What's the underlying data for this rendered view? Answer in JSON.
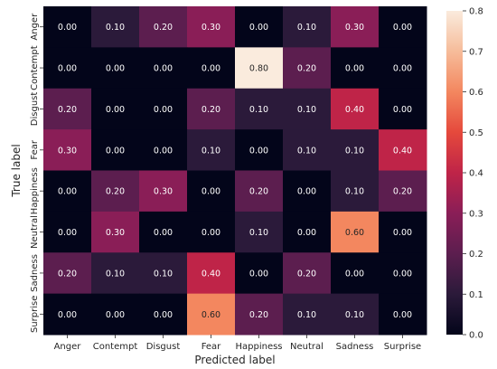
{
  "chart_data": {
    "type": "heatmap",
    "xlabel": "Predicted label",
    "ylabel": "True label",
    "x_categories": [
      "Anger",
      "Contempt",
      "Disgust",
      "Fear",
      "Happiness",
      "Neutral",
      "Sadness",
      "Surprise"
    ],
    "y_categories": [
      "Anger",
      "Contempt",
      "Disgust",
      "Fear",
      "Happiness",
      "Neutral",
      "Sadness",
      "Surprise"
    ],
    "values": [
      [
        0.0,
        0.1,
        0.2,
        0.3,
        0.0,
        0.1,
        0.3,
        0.0
      ],
      [
        0.0,
        0.0,
        0.0,
        0.0,
        0.8,
        0.2,
        0.0,
        0.0
      ],
      [
        0.2,
        0.0,
        0.0,
        0.2,
        0.1,
        0.1,
        0.4,
        0.0
      ],
      [
        0.3,
        0.0,
        0.0,
        0.1,
        0.0,
        0.1,
        0.1,
        0.4
      ],
      [
        0.0,
        0.2,
        0.3,
        0.0,
        0.2,
        0.0,
        0.1,
        0.2
      ],
      [
        0.0,
        0.3,
        0.0,
        0.0,
        0.1,
        0.0,
        0.6,
        0.0
      ],
      [
        0.2,
        0.1,
        0.1,
        0.4,
        0.0,
        0.2,
        0.0,
        0.0
      ],
      [
        0.0,
        0.0,
        0.0,
        0.6,
        0.2,
        0.1,
        0.1,
        0.0
      ]
    ],
    "value_format": "0.00",
    "colormap": "rocket",
    "colorbar": {
      "range": [
        0.0,
        0.8
      ],
      "ticks": [
        "0.0",
        "0.1",
        "0.2",
        "0.3",
        "0.4",
        "0.5",
        "0.6",
        "0.7",
        "0.8"
      ]
    }
  }
}
